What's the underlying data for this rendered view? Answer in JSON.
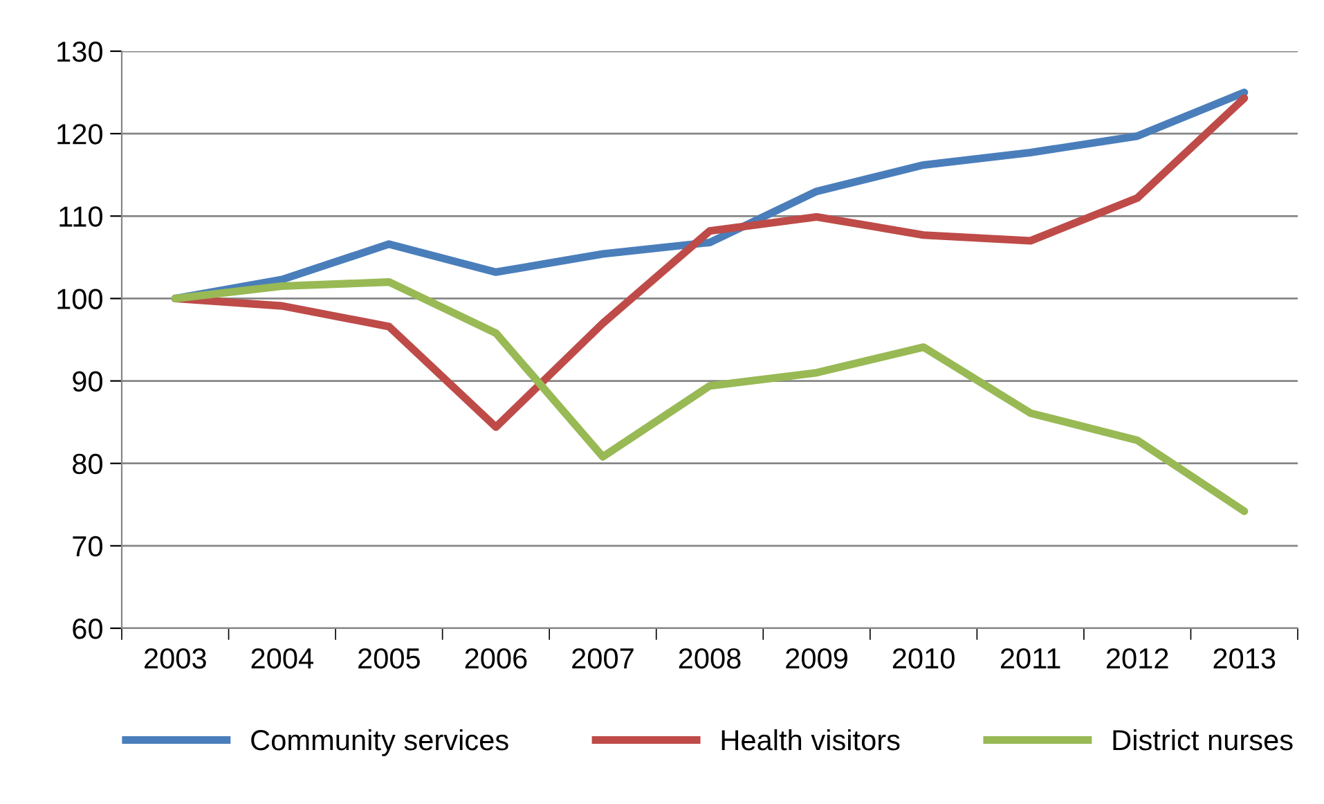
{
  "chart_data": {
    "type": "line",
    "categories": [
      "2003",
      "2004",
      "2005",
      "2006",
      "2007",
      "2008",
      "2009",
      "2010",
      "2011",
      "2012",
      "2013"
    ],
    "series": [
      {
        "name": "Community services",
        "color": "#4a7ebb",
        "values": [
          100,
          102.3,
          106.6,
          103.2,
          105.4,
          106.8,
          113,
          116.2,
          117.7,
          119.7,
          125
        ]
      },
      {
        "name": "Health visitors",
        "color": "#be4b48",
        "values": [
          100,
          99.1,
          96.6,
          84.4,
          97,
          108.2,
          109.9,
          107.7,
          107,
          112.2,
          124.3
        ]
      },
      {
        "name": "District nurses",
        "color": "#98b954",
        "values": [
          100,
          101.5,
          102,
          95.8,
          80.8,
          89.4,
          91,
          94.1,
          86.1,
          82.8,
          74.2
        ]
      }
    ],
    "ylim": [
      60,
      130
    ],
    "yticks": [
      60,
      70,
      80,
      90,
      100,
      110,
      120,
      130
    ],
    "grid": "y",
    "legend": "bottom",
    "marker": "none",
    "line_style": "solid"
  }
}
